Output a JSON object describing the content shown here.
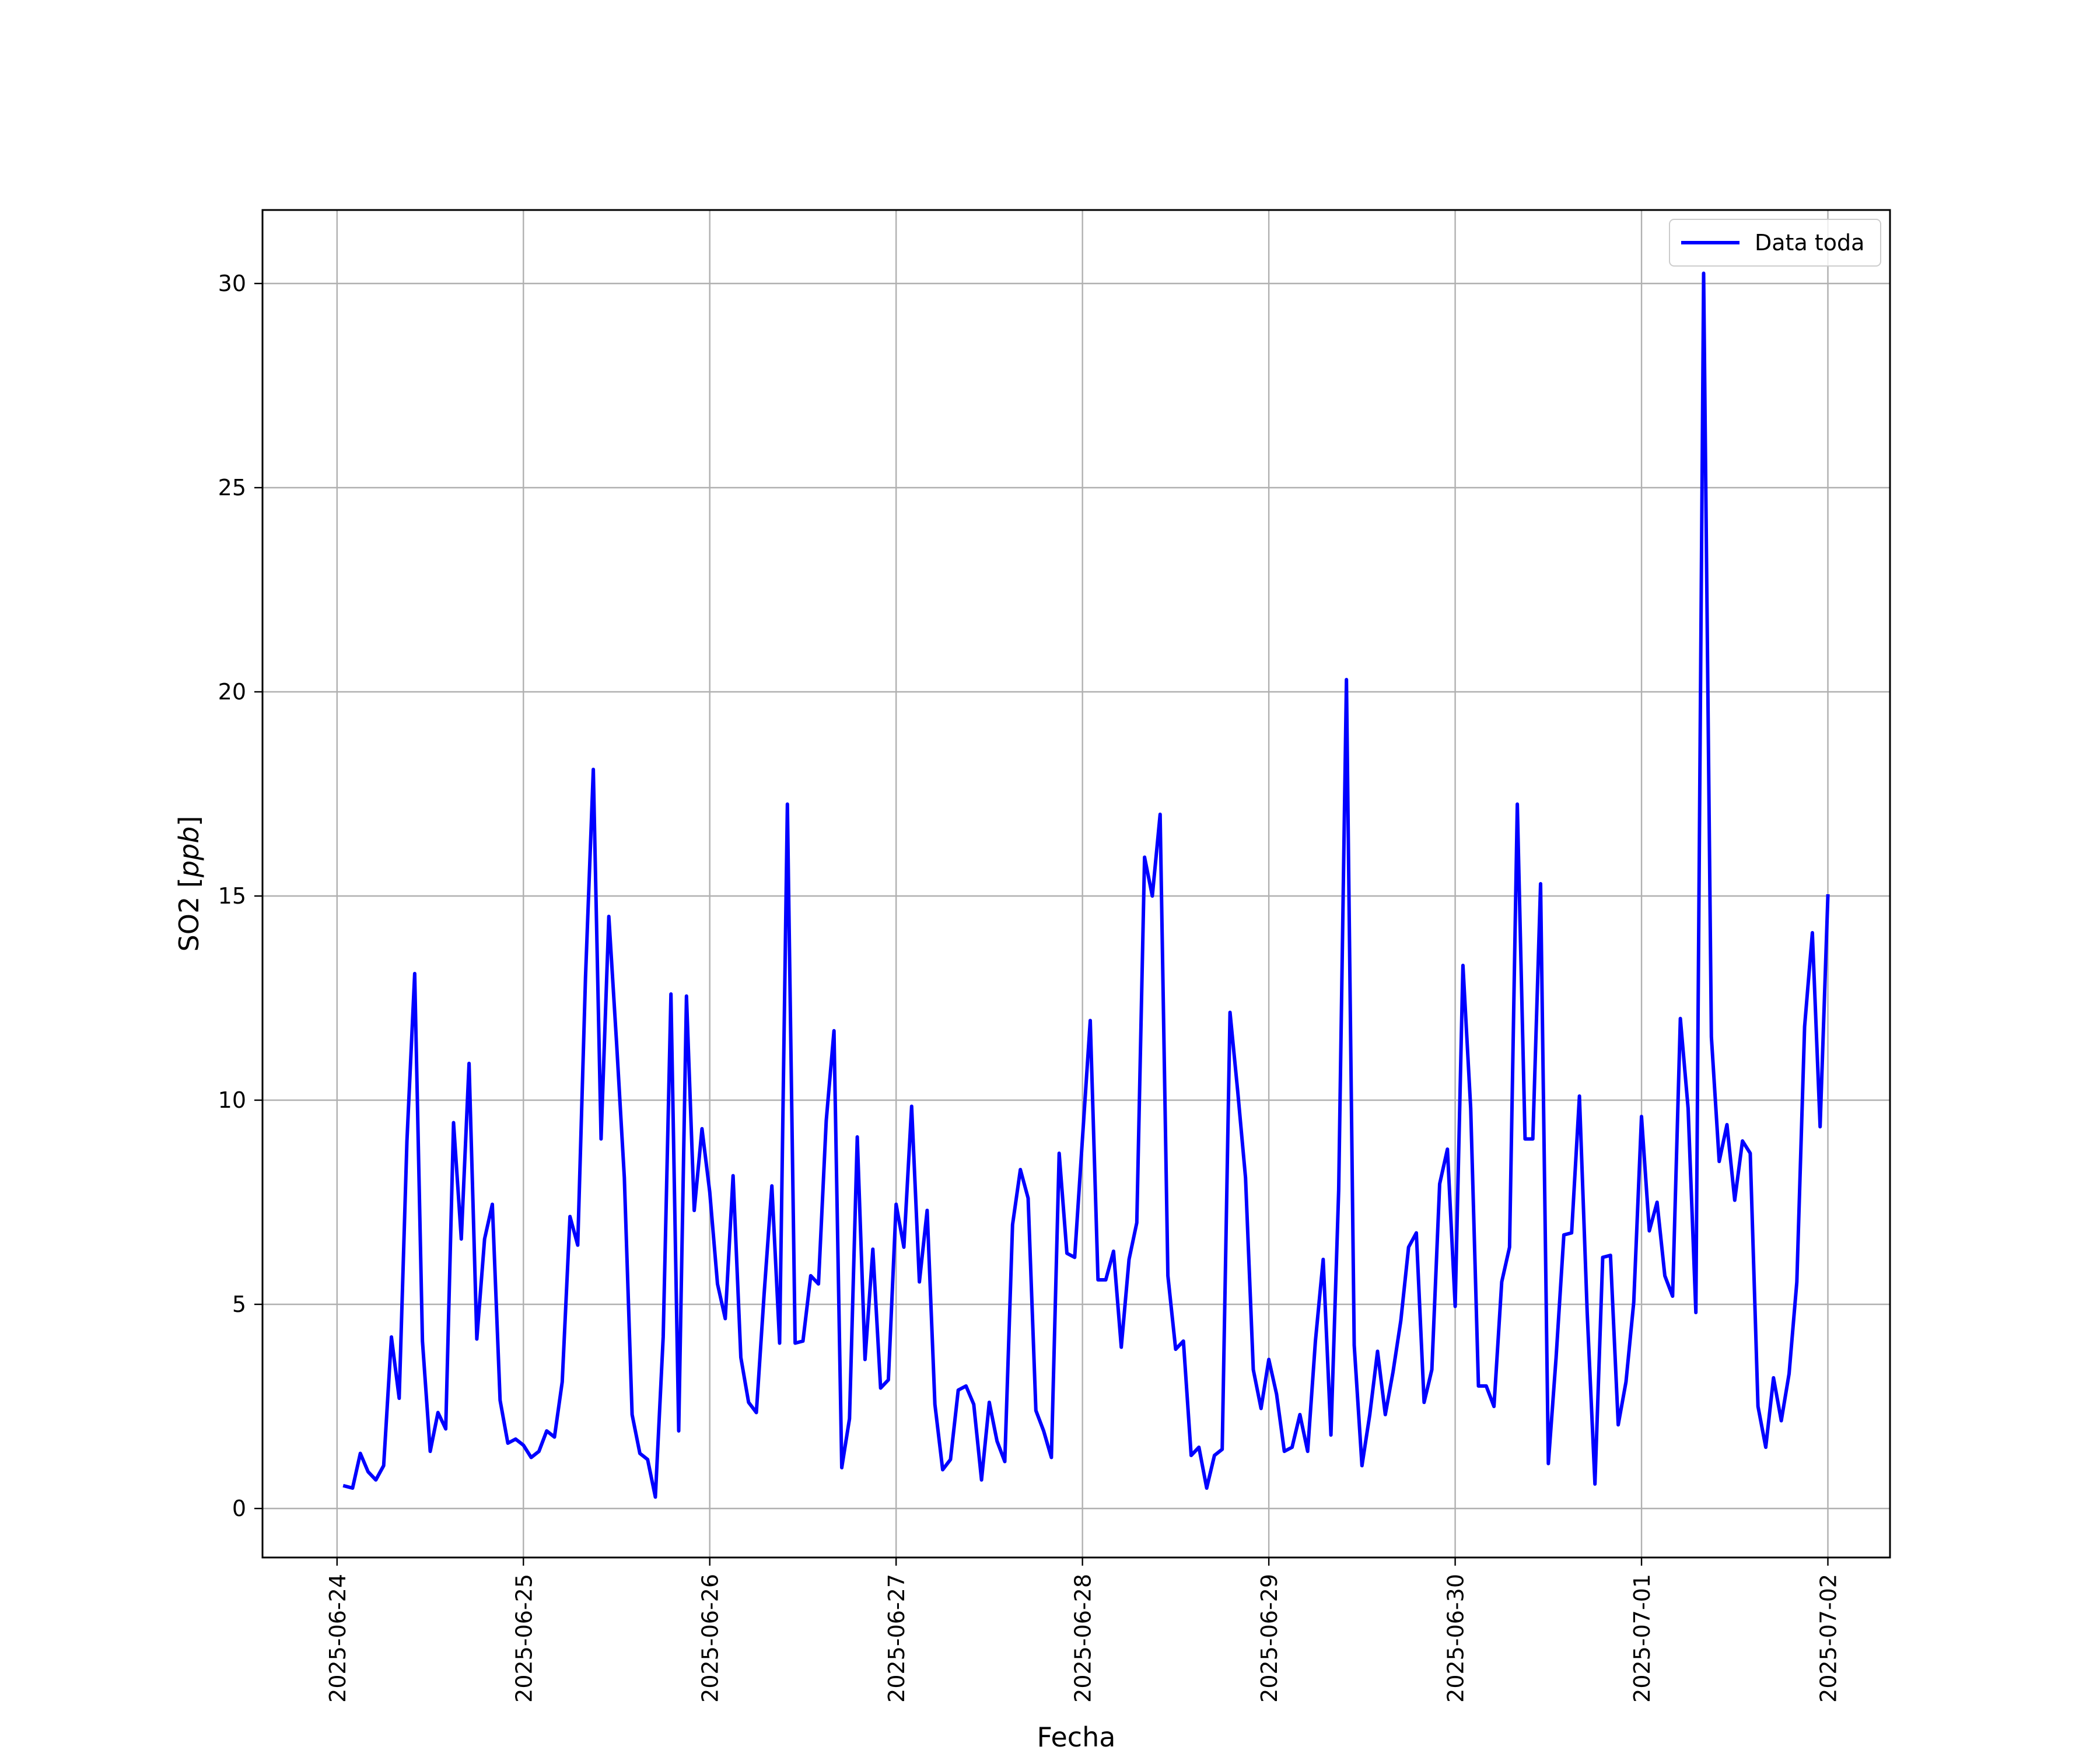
{
  "chart_data": {
    "type": "line",
    "xlabel": "Fecha",
    "ylabel": "SO2 [ppb]",
    "ylabel_plain": "SO2 [",
    "ylabel_unit": "ppb",
    "ylabel_close": "]",
    "xlim": [
      "2025-06-23T14:24",
      "2025-07-02T08:00"
    ],
    "ylim": [
      -1.2,
      31.8
    ],
    "grid": true,
    "legend_placement": "top-right",
    "x_ticks": [
      "2025-06-24",
      "2025-06-25",
      "2025-06-26",
      "2025-06-27",
      "2025-06-28",
      "2025-06-29",
      "2025-06-30",
      "2025-07-01",
      "2025-07-02"
    ],
    "y_ticks": [
      "0",
      "5",
      "10",
      "15",
      "20",
      "25",
      "30"
    ],
    "series": [
      {
        "name": "Data toda",
        "color": "#0000ff",
        "x": [
          "2025-06-24T01:00",
          "2025-06-24T02:00",
          "2025-06-24T03:00",
          "2025-06-24T04:00",
          "2025-06-24T05:00",
          "2025-06-24T06:00",
          "2025-06-24T07:00",
          "2025-06-24T08:00",
          "2025-06-24T09:00",
          "2025-06-24T10:00",
          "2025-06-24T11:00",
          "2025-06-24T12:00",
          "2025-06-24T13:00",
          "2025-06-24T14:00",
          "2025-06-24T15:00",
          "2025-06-24T16:00",
          "2025-06-24T17:00",
          "2025-06-24T18:00",
          "2025-06-24T19:00",
          "2025-06-24T20:00",
          "2025-06-24T21:00",
          "2025-06-24T22:00",
          "2025-06-24T23:00",
          "2025-06-25T00:00",
          "2025-06-25T01:00",
          "2025-06-25T02:00",
          "2025-06-25T03:00",
          "2025-06-25T04:00",
          "2025-06-25T05:00",
          "2025-06-25T06:00",
          "2025-06-25T07:00",
          "2025-06-25T08:00",
          "2025-06-25T09:00",
          "2025-06-25T10:00",
          "2025-06-25T11:00",
          "2025-06-25T12:00",
          "2025-06-25T13:00",
          "2025-06-25T14:00",
          "2025-06-25T15:00",
          "2025-06-25T16:00",
          "2025-06-25T17:00",
          "2025-06-25T18:00",
          "2025-06-25T19:00",
          "2025-06-25T20:00",
          "2025-06-25T21:00",
          "2025-06-25T22:00",
          "2025-06-25T23:00",
          "2025-06-26T00:00",
          "2025-06-26T01:00",
          "2025-06-26T02:00",
          "2025-06-26T03:00",
          "2025-06-26T04:00",
          "2025-06-26T05:00",
          "2025-06-26T06:00",
          "2025-06-26T07:00",
          "2025-06-26T08:00",
          "2025-06-26T09:00",
          "2025-06-26T10:00",
          "2025-06-26T11:00",
          "2025-06-26T12:00",
          "2025-06-26T13:00",
          "2025-06-26T14:00",
          "2025-06-26T15:00",
          "2025-06-26T16:00",
          "2025-06-26T17:00",
          "2025-06-26T18:00",
          "2025-06-26T19:00",
          "2025-06-26T20:00",
          "2025-06-26T21:00",
          "2025-06-26T22:00",
          "2025-06-26T23:00",
          "2025-06-27T00:00",
          "2025-06-27T01:00",
          "2025-06-27T02:00",
          "2025-06-27T03:00",
          "2025-06-27T04:00",
          "2025-06-27T05:00",
          "2025-06-27T06:00",
          "2025-06-27T07:00",
          "2025-06-27T08:00",
          "2025-06-27T09:00",
          "2025-06-27T10:00",
          "2025-06-27T11:00",
          "2025-06-27T12:00",
          "2025-06-27T13:00",
          "2025-06-27T14:00",
          "2025-06-27T15:00",
          "2025-06-27T16:00",
          "2025-06-27T17:00",
          "2025-06-27T18:00",
          "2025-06-27T19:00",
          "2025-06-27T20:00",
          "2025-06-27T21:00",
          "2025-06-27T22:00",
          "2025-06-27T23:00",
          "2025-06-28T00:00",
          "2025-06-28T01:00",
          "2025-06-28T02:00",
          "2025-06-28T03:00",
          "2025-06-28T04:00",
          "2025-06-28T05:00",
          "2025-06-28T06:00",
          "2025-06-28T07:00",
          "2025-06-28T08:00",
          "2025-06-28T09:00",
          "2025-06-28T10:00",
          "2025-06-28T11:00",
          "2025-06-28T12:00",
          "2025-06-28T13:00",
          "2025-06-28T14:00",
          "2025-06-28T15:00",
          "2025-06-28T16:00",
          "2025-06-28T17:00",
          "2025-06-28T18:00",
          "2025-06-28T19:00",
          "2025-06-28T20:00",
          "2025-06-28T21:00",
          "2025-06-28T22:00",
          "2025-06-28T23:00",
          "2025-06-29T00:00",
          "2025-06-29T01:00",
          "2025-06-29T02:00",
          "2025-06-29T03:00",
          "2025-06-29T04:00",
          "2025-06-29T05:00",
          "2025-06-29T06:00",
          "2025-06-29T07:00",
          "2025-06-29T08:00",
          "2025-06-29T09:00",
          "2025-06-29T10:00",
          "2025-06-29T11:00",
          "2025-06-29T12:00",
          "2025-06-29T13:00",
          "2025-06-29T14:00",
          "2025-06-29T15:00",
          "2025-06-29T16:00",
          "2025-06-29T17:00",
          "2025-06-29T18:00",
          "2025-06-29T19:00",
          "2025-06-29T20:00",
          "2025-06-29T21:00",
          "2025-06-29T22:00",
          "2025-06-29T23:00",
          "2025-06-30T00:00",
          "2025-06-30T01:00",
          "2025-06-30T02:00",
          "2025-06-30T03:00",
          "2025-06-30T04:00",
          "2025-06-30T05:00",
          "2025-06-30T06:00",
          "2025-06-30T07:00",
          "2025-06-30T08:00",
          "2025-06-30T09:00",
          "2025-06-30T10:00",
          "2025-06-30T11:00",
          "2025-06-30T12:00",
          "2025-06-30T13:00",
          "2025-06-30T14:00",
          "2025-06-30T15:00",
          "2025-06-30T16:00",
          "2025-06-30T17:00",
          "2025-06-30T18:00",
          "2025-06-30T19:00",
          "2025-06-30T20:00",
          "2025-06-30T21:00",
          "2025-06-30T22:00",
          "2025-06-30T23:00",
          "2025-07-01T00:00",
          "2025-07-01T01:00",
          "2025-07-01T02:00",
          "2025-07-01T03:00",
          "2025-07-01T04:00",
          "2025-07-01T05:00",
          "2025-07-01T06:00",
          "2025-07-01T07:00",
          "2025-07-01T08:00",
          "2025-07-01T09:00",
          "2025-07-01T10:00",
          "2025-07-01T11:00",
          "2025-07-01T12:00",
          "2025-07-01T13:00",
          "2025-07-01T14:00",
          "2025-07-01T15:00",
          "2025-07-01T16:00",
          "2025-07-01T17:00",
          "2025-07-01T18:00",
          "2025-07-01T19:00",
          "2025-07-01T20:00",
          "2025-07-01T21:00",
          "2025-07-01T22:00",
          "2025-07-01T23:00",
          "2025-07-02T00:00"
        ],
        "y": [
          0.55,
          0.5,
          1.35,
          0.9,
          0.7,
          1.05,
          4.2,
          2.7,
          9.0,
          13.1,
          4.1,
          1.4,
          2.35,
          1.95,
          9.45,
          6.6,
          10.9,
          4.15,
          6.6,
          7.45,
          2.65,
          1.6,
          1.7,
          1.55,
          1.25,
          1.4,
          1.9,
          1.75,
          3.1,
          7.15,
          6.45,
          13.0,
          18.1,
          9.05,
          14.5,
          11.4,
          8.1,
          2.3,
          1.35,
          1.2,
          0.28,
          4.2,
          12.6,
          1.9,
          12.55,
          7.3,
          9.3,
          7.75,
          5.5,
          4.65,
          8.15,
          3.7,
          2.6,
          2.35,
          5.25,
          7.9,
          4.05,
          17.25,
          4.05,
          4.1,
          5.7,
          5.5,
          9.5,
          11.7,
          1.0,
          2.2,
          9.1,
          3.65,
          6.35,
          2.95,
          3.15,
          7.45,
          6.4,
          9.85,
          5.55,
          7.3,
          2.55,
          0.95,
          1.2,
          2.9,
          3.0,
          2.55,
          0.7,
          2.6,
          1.65,
          1.15,
          6.95,
          8.3,
          7.6,
          2.4,
          1.9,
          1.25,
          8.7,
          6.25,
          6.15,
          9.05,
          11.95,
          5.6,
          5.6,
          6.3,
          3.95,
          6.1,
          7.0,
          15.95,
          15.0,
          17.0,
          5.7,
          3.9,
          4.1,
          1.3,
          1.5,
          0.5,
          1.3,
          1.45,
          12.15,
          10.2,
          8.1,
          3.4,
          2.45,
          3.65,
          2.8,
          1.4,
          1.5,
          2.3,
          1.4,
          4.1,
          6.1,
          1.8,
          7.8,
          20.3,
          4.0,
          1.05,
          2.3,
          3.85,
          2.3,
          3.35,
          4.6,
          6.4,
          6.75,
          2.6,
          3.4,
          7.95,
          8.8,
          4.95,
          13.3,
          9.8,
          3.0,
          3.0,
          2.5,
          5.55,
          6.4,
          17.25,
          9.05,
          9.05,
          15.3,
          1.1,
          3.7,
          6.7,
          6.75,
          10.1,
          4.8,
          0.6,
          6.15,
          6.2,
          2.05,
          3.1,
          5.05,
          9.6,
          6.8,
          7.5,
          5.7,
          5.2,
          12.0,
          9.8,
          4.8,
          30.25,
          11.55,
          8.5,
          9.4,
          7.55,
          9.0,
          8.7,
          2.5,
          1.5,
          3.2,
          2.15,
          3.3,
          5.55,
          11.8,
          14.1,
          9.35,
          15.0
        ]
      }
    ]
  }
}
